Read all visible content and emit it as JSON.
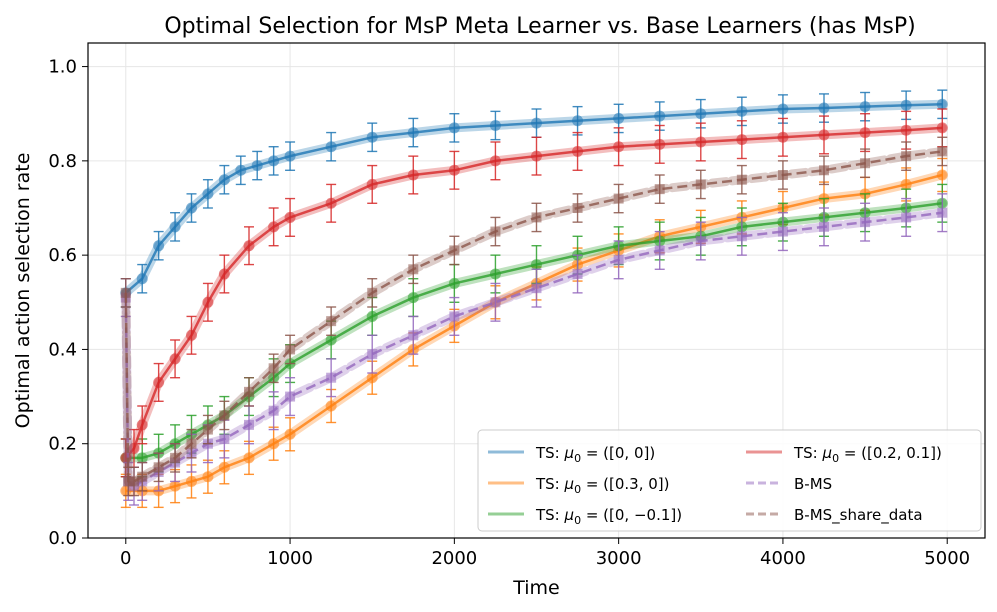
{
  "chart_data": {
    "type": "line",
    "title": "Optimal Selection for MsP Meta Learner vs. Base Learners (has MsP)",
    "xlabel": "Time",
    "ylabel": "Optimal action selection rate",
    "xlim": [
      -230,
      5230
    ],
    "ylim": [
      0.0,
      1.05
    ],
    "xticks": [
      0,
      1000,
      2000,
      3000,
      4000,
      5000
    ],
    "xtick_labels": [
      "0",
      "1000",
      "2000",
      "3000",
      "4000",
      "5000"
    ],
    "yticks": [
      0.0,
      0.2,
      0.4,
      0.6,
      0.8,
      1.0
    ],
    "ytick_labels": [
      "0.0",
      "0.2",
      "0.4",
      "0.6",
      "0.8",
      "1.0"
    ],
    "grid": true,
    "legend_position": "lower-right",
    "legend_columns": 2,
    "series": [
      {
        "name": "TS: μ0 = ([0, 0])",
        "label_prefix": "TS: ",
        "label_mu": "μ",
        "label_sub": "0",
        "label_value": " = ([0, 0])",
        "color": "#1f77b4",
        "style": "solid",
        "marker": "circle",
        "errbar": 0.03,
        "x": [
          0,
          100,
          200,
          300,
          400,
          500,
          600,
          700,
          800,
          900,
          1000,
          1250,
          1500,
          1750,
          2000,
          2250,
          2500,
          2750,
          3000,
          3250,
          3500,
          3750,
          4000,
          4250,
          4500,
          4750,
          4970
        ],
        "y": [
          0.52,
          0.55,
          0.62,
          0.66,
          0.7,
          0.73,
          0.76,
          0.78,
          0.79,
          0.8,
          0.81,
          0.83,
          0.85,
          0.86,
          0.87,
          0.875,
          0.88,
          0.885,
          0.89,
          0.895,
          0.9,
          0.905,
          0.91,
          0.912,
          0.915,
          0.918,
          0.92
        ]
      },
      {
        "name": "TS: μ0 = ([0.3, 0])",
        "label_prefix": "TS: ",
        "label_mu": "μ",
        "label_sub": "0",
        "label_value": " = ([0.3, 0])",
        "color": "#ff7f0e",
        "style": "solid",
        "marker": "circle",
        "errbar": 0.035,
        "x": [
          0,
          100,
          200,
          300,
          400,
          500,
          600,
          750,
          900,
          1000,
          1250,
          1500,
          1750,
          2000,
          2250,
          2500,
          2750,
          3000,
          3250,
          3500,
          3750,
          4000,
          4250,
          4500,
          4750,
          4970
        ],
        "y": [
          0.1,
          0.1,
          0.1,
          0.11,
          0.12,
          0.13,
          0.15,
          0.17,
          0.2,
          0.22,
          0.28,
          0.34,
          0.4,
          0.45,
          0.5,
          0.54,
          0.58,
          0.61,
          0.64,
          0.66,
          0.68,
          0.7,
          0.72,
          0.73,
          0.75,
          0.77
        ]
      },
      {
        "name": "TS: μ0 = ([0, −0.1])",
        "label_prefix": "TS: ",
        "label_mu": "μ",
        "label_sub": "0",
        "label_value": " = ([0, −0.1])",
        "color": "#2ca02c",
        "style": "solid",
        "marker": "circle",
        "errbar": 0.04,
        "x": [
          0,
          100,
          200,
          300,
          400,
          500,
          600,
          750,
          900,
          1000,
          1250,
          1500,
          1750,
          2000,
          2250,
          2500,
          2750,
          3000,
          3250,
          3500,
          3750,
          4000,
          4250,
          4500,
          4750,
          4970
        ],
        "y": [
          0.17,
          0.17,
          0.18,
          0.2,
          0.22,
          0.24,
          0.26,
          0.3,
          0.34,
          0.37,
          0.42,
          0.47,
          0.51,
          0.54,
          0.56,
          0.58,
          0.6,
          0.62,
          0.63,
          0.64,
          0.66,
          0.67,
          0.68,
          0.69,
          0.7,
          0.71
        ]
      },
      {
        "name": "TS: μ0 = ([0.2, 0.1])",
        "label_prefix": "TS: ",
        "label_mu": "μ",
        "label_sub": "0",
        "label_value": " = ([0.2, 0.1])",
        "color": "#d62728",
        "style": "solid",
        "marker": "circle",
        "errbar": 0.04,
        "x": [
          0,
          50,
          100,
          200,
          300,
          400,
          500,
          600,
          750,
          900,
          1000,
          1250,
          1500,
          1750,
          2000,
          2250,
          2500,
          2750,
          3000,
          3250,
          3500,
          3750,
          4000,
          4250,
          4500,
          4750,
          4970
        ],
        "y": [
          0.17,
          0.19,
          0.24,
          0.33,
          0.38,
          0.43,
          0.5,
          0.56,
          0.62,
          0.66,
          0.68,
          0.71,
          0.75,
          0.77,
          0.78,
          0.8,
          0.81,
          0.82,
          0.83,
          0.835,
          0.84,
          0.845,
          0.85,
          0.855,
          0.86,
          0.865,
          0.87
        ]
      },
      {
        "name": "B-MS",
        "label_prefix": "B-MS",
        "label_mu": "",
        "label_sub": "",
        "label_value": "",
        "color": "#9467bd",
        "style": "dashed",
        "marker": "square",
        "errbar": 0.04,
        "x": [
          0,
          15,
          50,
          100,
          200,
          300,
          400,
          500,
          600,
          750,
          900,
          1000,
          1250,
          1500,
          1750,
          2000,
          2250,
          2500,
          2750,
          3000,
          3250,
          3500,
          3750,
          4000,
          4250,
          4500,
          4750,
          4970
        ],
        "y": [
          0.51,
          0.12,
          0.11,
          0.12,
          0.14,
          0.16,
          0.18,
          0.2,
          0.21,
          0.24,
          0.27,
          0.3,
          0.34,
          0.39,
          0.43,
          0.47,
          0.5,
          0.53,
          0.56,
          0.59,
          0.61,
          0.63,
          0.64,
          0.65,
          0.66,
          0.67,
          0.68,
          0.69
        ]
      },
      {
        "name": "B-MS_share_data",
        "label_prefix": "B-MS_share_data",
        "label_mu": "",
        "label_sub": "",
        "label_value": "",
        "color": "#8c564b",
        "style": "dashed",
        "marker": "square",
        "errbar": 0.03,
        "x": [
          0,
          15,
          50,
          100,
          200,
          300,
          400,
          500,
          600,
          750,
          900,
          1000,
          1250,
          1500,
          1750,
          2000,
          2250,
          2500,
          2750,
          3000,
          3250,
          3500,
          3750,
          4000,
          4250,
          4500,
          4750,
          4970
        ],
        "y": [
          0.52,
          0.12,
          0.12,
          0.13,
          0.15,
          0.17,
          0.2,
          0.23,
          0.26,
          0.31,
          0.36,
          0.4,
          0.46,
          0.52,
          0.57,
          0.61,
          0.65,
          0.68,
          0.7,
          0.72,
          0.74,
          0.75,
          0.76,
          0.77,
          0.78,
          0.795,
          0.81,
          0.82
        ]
      }
    ]
  }
}
